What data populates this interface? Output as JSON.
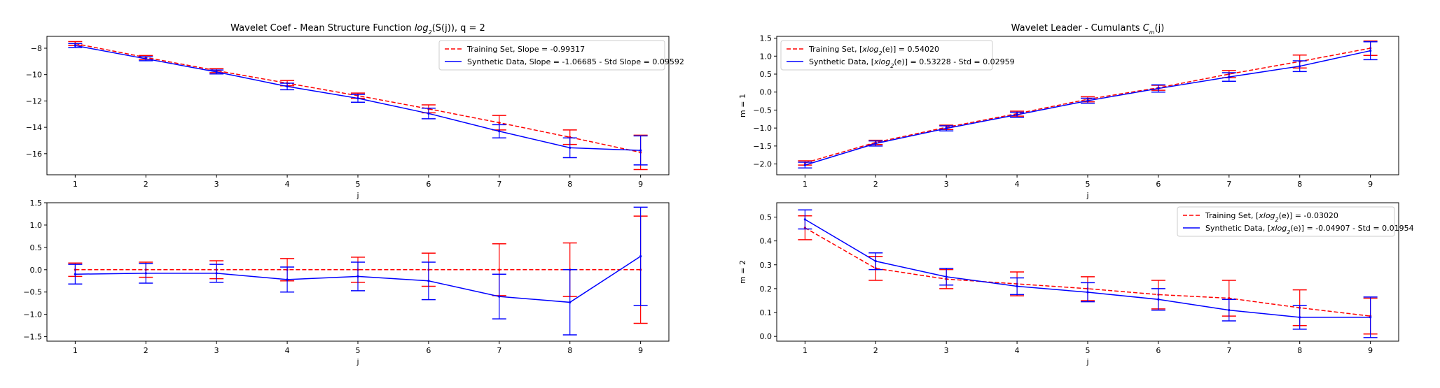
{
  "chart_data": [
    {
      "type": "line",
      "title": "Wavelet Coef - Mean Structure Function log2(S(j)), q = 2",
      "title_parts": {
        "prefix": "Wavelet Coef - Mean Structure Function ",
        "math": "log",
        "sub": "2",
        "suffix": "(S(j)), q = 2"
      },
      "xlabel": "j",
      "ylabel": "",
      "x": [
        1,
        2,
        3,
        4,
        5,
        6,
        7,
        8,
        9
      ],
      "xlim": [
        0.6,
        9.4
      ],
      "ylim": [
        -17.6,
        -7.1
      ],
      "yticks": [
        -16,
        -14,
        -12,
        -10,
        -8
      ],
      "ytick_labels": [
        "−16",
        "−14",
        "−12",
        "−10",
        "−8"
      ],
      "legend_position": "top-right",
      "series": [
        {
          "name": "Training Set, Slope = -0.99317",
          "color": "#ff0000",
          "style": "dashed",
          "values": [
            -7.65,
            -8.7,
            -9.7,
            -10.65,
            -11.6,
            -12.6,
            -13.65,
            -14.75,
            -15.9
          ],
          "errors": [
            0.15,
            0.15,
            0.15,
            0.2,
            0.2,
            0.3,
            0.55,
            0.55,
            1.3
          ]
        },
        {
          "name": "Synthetic Data, Slope = -1.06685 - Std Slope = 0.09592",
          "color": "#0000ff",
          "style": "solid",
          "values": [
            -7.8,
            -8.8,
            -9.8,
            -10.9,
            -11.8,
            -12.95,
            -14.3,
            -15.55,
            -15.75
          ],
          "errors": [
            0.15,
            0.15,
            0.15,
            0.25,
            0.3,
            0.4,
            0.5,
            0.75,
            1.1
          ]
        }
      ]
    },
    {
      "type": "line",
      "title": "",
      "xlabel": "j",
      "ylabel": "",
      "x": [
        1,
        2,
        3,
        4,
        5,
        6,
        7,
        8,
        9
      ],
      "xlim": [
        0.6,
        9.4
      ],
      "ylim": [
        -1.6,
        1.5
      ],
      "yticks": [
        -1.5,
        -1.0,
        -0.5,
        0.0,
        0.5,
        1.0,
        1.5
      ],
      "ytick_labels": [
        "−1.5",
        "−1.0",
        "−0.5",
        "0.0",
        "0.5",
        "1.0",
        "1.5"
      ],
      "series": [
        {
          "name": "",
          "color": "#ff0000",
          "style": "dashed",
          "values": [
            0,
            0,
            0,
            0,
            0,
            0,
            0,
            0,
            0
          ],
          "errors": [
            0.15,
            0.17,
            0.2,
            0.25,
            0.28,
            0.37,
            0.58,
            0.6,
            1.2
          ]
        },
        {
          "name": "",
          "color": "#0000ff",
          "style": "solid",
          "values": [
            -0.1,
            -0.08,
            -0.08,
            -0.22,
            -0.15,
            -0.25,
            -0.6,
            -0.73,
            0.3
          ],
          "errors": [
            0.22,
            0.22,
            0.2,
            0.28,
            0.32,
            0.42,
            0.5,
            0.73,
            1.1
          ]
        }
      ]
    },
    {
      "type": "line",
      "title": "Wavelet Leader - Cumulants Cm(j)",
      "title_parts": {
        "prefix": "Wavelet Leader - Cumulants ",
        "math": "C",
        "sub": "m",
        "suffix": "(j)"
      },
      "xlabel": "j",
      "ylabel": "m = 1",
      "x": [
        1,
        2,
        3,
        4,
        5,
        6,
        7,
        8,
        9
      ],
      "xlim": [
        0.6,
        9.4
      ],
      "ylim": [
        -2.3,
        1.55
      ],
      "yticks": [
        -2.0,
        -1.5,
        -1.0,
        -0.5,
        0.0,
        0.5,
        1.0,
        1.5
      ],
      "ytick_labels": [
        "−2.0",
        "−1.5",
        "−1.0",
        "−0.5",
        "0.0",
        "0.5",
        "1.0",
        "1.5"
      ],
      "legend_position": "top-left",
      "series": [
        {
          "name": "Training Set, [xlog2(e)] = 0.54020",
          "legend_parts": {
            "prefix": "Training Set, [",
            "math": "xlog",
            "sub": "2",
            "suffix": "(e)] = 0.54020"
          },
          "color": "#ff0000",
          "style": "dashed",
          "values": [
            -1.97,
            -1.4,
            -0.98,
            -0.6,
            -0.2,
            0.12,
            0.5,
            0.85,
            1.22
          ],
          "errors": [
            0.06,
            0.06,
            0.06,
            0.07,
            0.07,
            0.07,
            0.1,
            0.18,
            0.2
          ]
        },
        {
          "name": "Synthetic Data, [xlog2(e)] = 0.53228 - Std = 0.02959",
          "legend_parts": {
            "prefix": "Synthetic Data, [",
            "math": "xlog",
            "sub": "2",
            "suffix": "(e)] = 0.53228 - Std = 0.02959"
          },
          "color": "#0000ff",
          "style": "solid",
          "values": [
            -2.03,
            -1.43,
            -1.01,
            -0.63,
            -0.24,
            0.1,
            0.42,
            0.72,
            1.15
          ],
          "errors": [
            0.08,
            0.07,
            0.07,
            0.07,
            0.07,
            0.1,
            0.12,
            0.15,
            0.25
          ]
        }
      ]
    },
    {
      "type": "line",
      "title": "",
      "xlabel": "j",
      "ylabel": "m = 2",
      "x": [
        1,
        2,
        3,
        4,
        5,
        6,
        7,
        8,
        9
      ],
      "xlim": [
        0.6,
        9.4
      ],
      "ylim": [
        -0.02,
        0.56
      ],
      "yticks": [
        0.0,
        0.1,
        0.2,
        0.3,
        0.4,
        0.5
      ],
      "ytick_labels": [
        "0.0",
        "0.1",
        "0.2",
        "0.3",
        "0.4",
        "0.5"
      ],
      "legend_position": "top-right",
      "series": [
        {
          "name": "Training Set, [xlog2(e)] = -0.03020",
          "legend_parts": {
            "prefix": "Training Set, [",
            "math": "xlog",
            "sub": "2",
            "suffix": "(e)] = -0.03020"
          },
          "color": "#ff0000",
          "style": "dashed",
          "values": [
            0.455,
            0.285,
            0.24,
            0.22,
            0.2,
            0.175,
            0.16,
            0.12,
            0.085
          ],
          "errors": [
            0.05,
            0.05,
            0.04,
            0.05,
            0.05,
            0.06,
            0.075,
            0.075,
            0.075
          ]
        },
        {
          "name": "Synthetic Data, [xlog2(e)] = -0.04907 - Std = 0.01954",
          "legend_parts": {
            "prefix": "Synthetic Data, [",
            "math": "xlog",
            "sub": "2",
            "suffix": "(e)] = -0.04907 - Std = 0.01954"
          },
          "color": "#0000ff",
          "style": "solid",
          "values": [
            0.49,
            0.315,
            0.25,
            0.21,
            0.185,
            0.155,
            0.11,
            0.08,
            0.08
          ],
          "errors": [
            0.04,
            0.035,
            0.035,
            0.035,
            0.04,
            0.045,
            0.045,
            0.05,
            0.085
          ]
        }
      ]
    }
  ]
}
